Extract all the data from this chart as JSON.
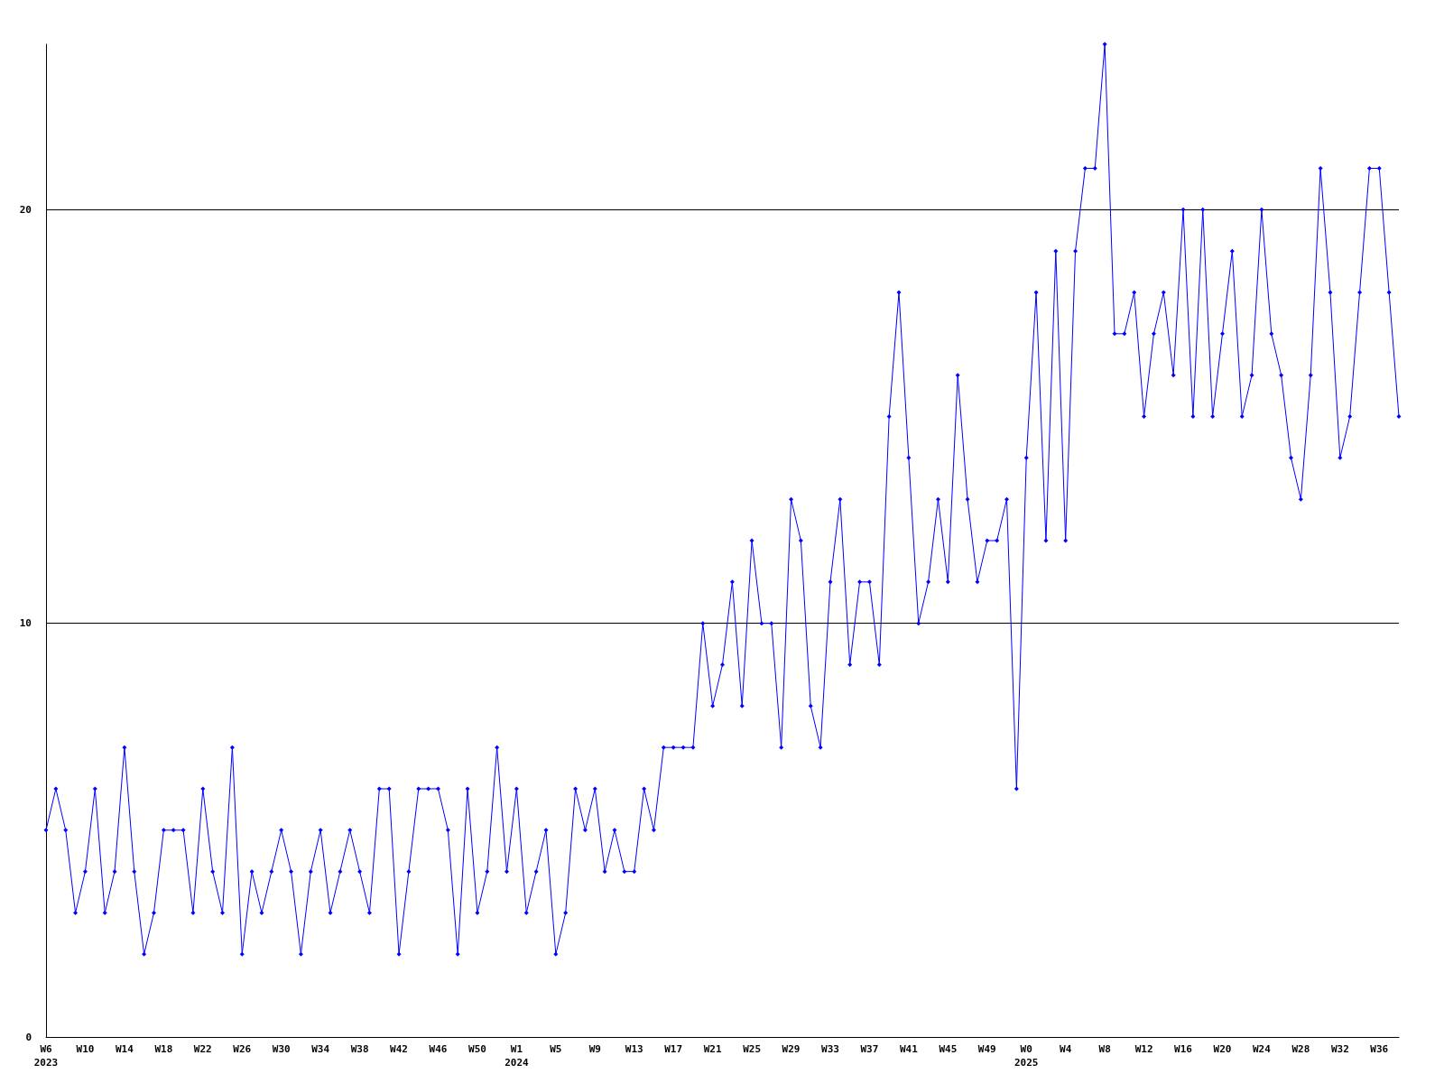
{
  "chart_data": {
    "type": "line",
    "categories": [
      "W6\n2023",
      null,
      null,
      null,
      "W10",
      null,
      null,
      null,
      "W14",
      null,
      null,
      null,
      "W18",
      null,
      null,
      null,
      "W22",
      null,
      null,
      null,
      "W26",
      null,
      null,
      null,
      "W30",
      null,
      null,
      null,
      "W34",
      null,
      null,
      null,
      "W38",
      null,
      null,
      null,
      "W42",
      null,
      null,
      null,
      "W46",
      null,
      null,
      null,
      "W50",
      null,
      null,
      null,
      "W1\n2024",
      null,
      null,
      null,
      "W5",
      null,
      null,
      null,
      "W9",
      null,
      null,
      null,
      "W13",
      null,
      null,
      null,
      "W17",
      null,
      null,
      null,
      "W21",
      null,
      null,
      null,
      "W25",
      null,
      null,
      null,
      "W29",
      null,
      null,
      null,
      "W33",
      null,
      null,
      null,
      "W37",
      null,
      null,
      null,
      "W41",
      null,
      null,
      null,
      "W45",
      null,
      null,
      null,
      "W49",
      null,
      null,
      null,
      "W0\n2025",
      null,
      null,
      null,
      "W4",
      null,
      null,
      null,
      "W8",
      null,
      null,
      null,
      "W12",
      null,
      null,
      null,
      "W16",
      null,
      null,
      null,
      "W20",
      null,
      null,
      null,
      "W24",
      null,
      null,
      null,
      "W28",
      null,
      null,
      null,
      "W32",
      null,
      null,
      null,
      "W36",
      null,
      null
    ],
    "series": [
      {
        "color": "#0000ff",
        "values": [
          5,
          6,
          5,
          3,
          4,
          6,
          3,
          4,
          7,
          4,
          2,
          3,
          5,
          5,
          5,
          3,
          6,
          4,
          3,
          7,
          2,
          4,
          3,
          4,
          5,
          4,
          2,
          4,
          5,
          3,
          4,
          5,
          4,
          3,
          6,
          6,
          2,
          4,
          6,
          6,
          6,
          5,
          2,
          6,
          3,
          4,
          7,
          4,
          6,
          3,
          4,
          5,
          2,
          3,
          6,
          5,
          6,
          4,
          5,
          4,
          4,
          6,
          5,
          7,
          7,
          7,
          7,
          10,
          8,
          9,
          11,
          8,
          12,
          10,
          10,
          7,
          13,
          12,
          8,
          7,
          11,
          13,
          9,
          11,
          11,
          9,
          15,
          18,
          14,
          10,
          11,
          13,
          11,
          16,
          13,
          11,
          12,
          12,
          13,
          6,
          14,
          18,
          12,
          19,
          12,
          19,
          21,
          21,
          24,
          17,
          17,
          18,
          15,
          17,
          18,
          16,
          20,
          15,
          20,
          15,
          17,
          19,
          15,
          16,
          20,
          17,
          16,
          14,
          13,
          16,
          21,
          18,
          14,
          15,
          18,
          21,
          21,
          18,
          15
        ]
      }
    ],
    "ylim": [
      0,
      24
    ],
    "yticks": [
      0,
      10,
      20
    ],
    "grid": "y",
    "marker": "diamond",
    "line_style": "solid"
  }
}
